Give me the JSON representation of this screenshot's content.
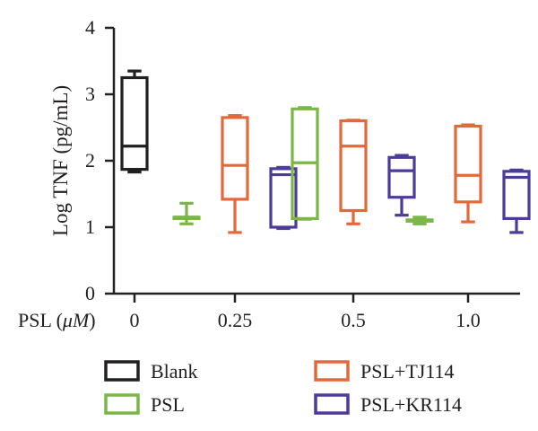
{
  "chart_data": {
    "type": "boxplot",
    "ylabel": "Log TNF (pg/mL)",
    "xaxis_prefix_main": "PSL (",
    "xaxis_prefix_unit": "μM",
    "xaxis_prefix_close": ")",
    "categories": [
      "0",
      "0.25",
      "0.5",
      "1.0"
    ],
    "yticks": [
      "0",
      "1",
      "2",
      "3",
      "4"
    ],
    "ylim": [
      0,
      4
    ],
    "series": [
      {
        "name": "Blank",
        "color": "#231f20"
      },
      {
        "name": "PSL",
        "color": "#7ab648"
      },
      {
        "name": "PSL+TJ114",
        "color": "#e3683a"
      },
      {
        "name": "PSL+KR114",
        "color": "#4e3a97"
      }
    ],
    "boxes": [
      {
        "series": 0,
        "category": 0,
        "slot": 0,
        "min": 1.83,
        "q1": 1.87,
        "median": 2.22,
        "q3": 3.25,
        "max": 3.35
      },
      {
        "series": 1,
        "category": 1,
        "slot": -1,
        "min": 1.05,
        "q1": 1.13,
        "median": 1.15,
        "q3": 1.15,
        "max": 1.36
      },
      {
        "series": 2,
        "category": 1,
        "slot": 0,
        "min": 0.92,
        "q1": 1.42,
        "median": 1.93,
        "q3": 2.65,
        "max": 2.68
      },
      {
        "series": 3,
        "category": 1,
        "slot": 1,
        "min": 0.98,
        "q1": 1.0,
        "median": 1.79,
        "q3": 1.88,
        "max": 1.9
      },
      {
        "series": 1,
        "category": 2,
        "slot": -1,
        "min": 1.12,
        "q1": 1.13,
        "median": 1.97,
        "q3": 2.78,
        "max": 2.8
      },
      {
        "series": 2,
        "category": 2,
        "slot": 0,
        "min": 1.05,
        "q1": 1.25,
        "median": 2.22,
        "q3": 2.6,
        "max": 2.61
      },
      {
        "series": 3,
        "category": 2,
        "slot": 1,
        "min": 1.18,
        "q1": 1.45,
        "median": 1.85,
        "q3": 2.05,
        "max": 2.08
      },
      {
        "series": 1,
        "category": 3,
        "slot": -1,
        "min": 1.05,
        "q1": 1.09,
        "median": 1.1,
        "q3": 1.11,
        "max": 1.15
      },
      {
        "series": 2,
        "category": 3,
        "slot": 0,
        "min": 1.08,
        "q1": 1.38,
        "median": 1.78,
        "q3": 2.52,
        "max": 2.54
      },
      {
        "series": 3,
        "category": 3,
        "slot": 1,
        "min": 0.92,
        "q1": 1.13,
        "median": 1.75,
        "q3": 1.84,
        "max": 1.86
      }
    ],
    "legend_placement": "bottom",
    "grid": false
  }
}
